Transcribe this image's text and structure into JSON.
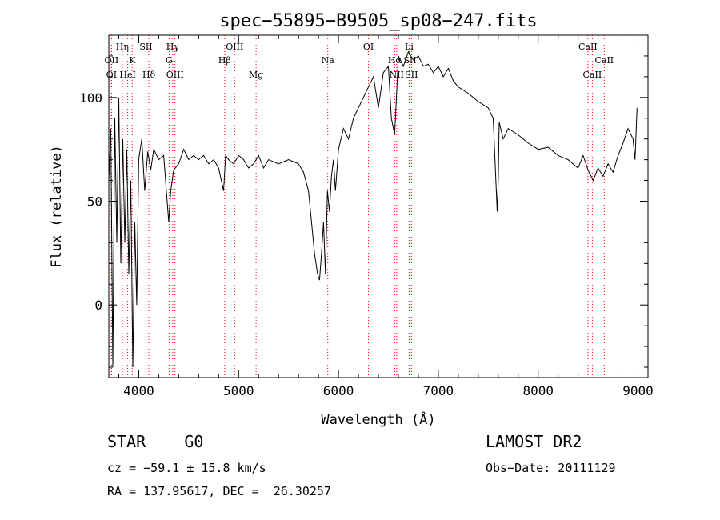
{
  "chart_data": {
    "type": "line",
    "title": "spec−55895−B9505_sp08−247.fits",
    "xlabel": "Wavelength (Å)",
    "ylabel": "Flux (relative)",
    "xlim": [
      3700,
      9100
    ],
    "ylim": [
      -35,
      130
    ],
    "xticks": [
      4000,
      5000,
      6000,
      7000,
      8000,
      9000
    ],
    "yticks": [
      0,
      50,
      100
    ],
    "grid": false,
    "line_color": "#000000",
    "marker_color": "#ff0000",
    "series": [
      {
        "x": [
          3700,
          3720,
          3740,
          3760,
          3780,
          3800,
          3820,
          3840,
          3860,
          3880,
          3900,
          3920,
          3940,
          3960,
          3980,
          4000,
          4030,
          4060,
          4090,
          4120,
          4150,
          4200,
          4250,
          4300,
          4320,
          4350,
          4400,
          4450,
          4500,
          4550,
          4600,
          4650,
          4700,
          4750,
          4800,
          4850,
          4870,
          4900,
          4950,
          5000,
          5050,
          5100,
          5150,
          5200,
          5250,
          5300,
          5400,
          5500,
          5600,
          5650,
          5700,
          5730,
          5760,
          5790,
          5810,
          5830,
          5850,
          5870,
          5890,
          5910,
          5930,
          5950,
          5970,
          6000,
          6050,
          6100,
          6150,
          6200,
          6250,
          6300,
          6350,
          6400,
          6450,
          6500,
          6530,
          6563,
          6600,
          6650,
          6700,
          6750,
          6800,
          6850,
          6900,
          6950,
          7000,
          7050,
          7100,
          7150,
          7200,
          7300,
          7400,
          7500,
          7550,
          7590,
          7600,
          7610,
          7650,
          7700,
          7800,
          7900,
          8000,
          8100,
          8200,
          8300,
          8400,
          8450,
          8500,
          8550,
          8600,
          8650,
          8700,
          8750,
          8800,
          8850,
          8900,
          8950,
          8970,
          8990
        ],
        "values": [
          60,
          85,
          -30,
          90,
          30,
          100,
          20,
          80,
          30,
          75,
          15,
          60,
          -30,
          40,
          0,
          70,
          80,
          55,
          74,
          65,
          75,
          70,
          72,
          40,
          55,
          65,
          68,
          75,
          70,
          72,
          70,
          72,
          68,
          70,
          66,
          55,
          72,
          70,
          68,
          72,
          70,
          66,
          68,
          72,
          66,
          70,
          68,
          70,
          68,
          64,
          55,
          40,
          25,
          15,
          12,
          25,
          40,
          15,
          55,
          45,
          62,
          70,
          55,
          75,
          85,
          80,
          90,
          95,
          100,
          105,
          110,
          95,
          112,
          115,
          90,
          82,
          120,
          115,
          122,
          118,
          120,
          115,
          116,
          112,
          115,
          110,
          114,
          108,
          105,
          102,
          98,
          95,
          90,
          45,
          60,
          88,
          80,
          85,
          82,
          78,
          75,
          76,
          72,
          70,
          66,
          72,
          65,
          60,
          66,
          62,
          68,
          64,
          72,
          78,
          85,
          80,
          70,
          95
        ]
      }
    ],
    "line_markers": {
      "top_row": [
        {
          "label": "Hη",
          "x": 3835
        },
        {
          "label": "SII",
          "x": 4072
        },
        {
          "label": "Hγ",
          "x": 4340
        },
        {
          "label": "OIII",
          "x": 4960
        },
        {
          "label": "OI",
          "x": 6300
        },
        {
          "label": "Li",
          "x": 6708
        },
        {
          "label": "CaII",
          "x": 8498
        }
      ],
      "mid_row": [
        {
          "label": "OII",
          "x": 3727
        },
        {
          "label": "K",
          "x": 3934
        },
        {
          "label": "G",
          "x": 4304
        },
        {
          "label": "Hβ",
          "x": 4861
        },
        {
          "label": "Na",
          "x": 5893
        },
        {
          "label": "Hα",
          "x": 6563
        },
        {
          "label": "SII",
          "x": 6716
        },
        {
          "label": "CaII",
          "x": 8662
        }
      ],
      "low_row": [
        {
          "label": "OI",
          "x": 3727
        },
        {
          "label": "HeI",
          "x": 3889
        },
        {
          "label": "Hδ",
          "x": 4101
        },
        {
          "label": "OIII",
          "x": 4363
        },
        {
          "label": "Mg",
          "x": 5175
        },
        {
          "label": "NII",
          "x": 6583
        },
        {
          "label": "SII",
          "x": 6731
        },
        {
          "label": "CaII",
          "x": 8542
        }
      ]
    }
  },
  "info": {
    "object_class": "STAR    G0",
    "survey": "LAMOST DR2",
    "cz": "cz = −59.1 ± 15.8 km/s",
    "obs_date": "Obs−Date: 20111129",
    "radec": "RA = 137.95617, DEC =  26.30257"
  }
}
